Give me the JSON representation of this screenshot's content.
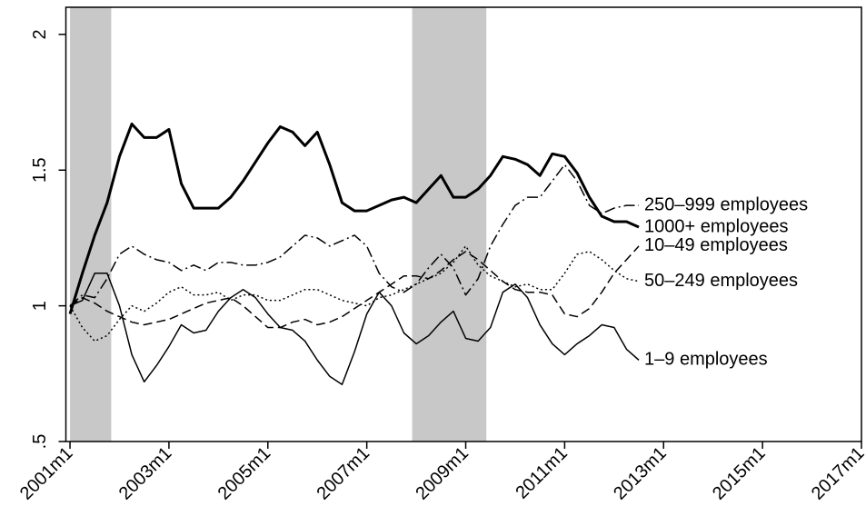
{
  "chart_data": {
    "type": "line",
    "x": [
      "2001m1",
      "2001m4",
      "2001m7",
      "2001m10",
      "2002m1",
      "2002m4",
      "2002m7",
      "2002m10",
      "2003m1",
      "2003m4",
      "2003m7",
      "2003m10",
      "2004m1",
      "2004m4",
      "2004m7",
      "2004m10",
      "2005m1",
      "2005m4",
      "2005m7",
      "2005m10",
      "2006m1",
      "2006m4",
      "2006m7",
      "2006m10",
      "2007m1",
      "2007m4",
      "2007m7",
      "2007m10",
      "2008m1",
      "2008m4",
      "2008m7",
      "2008m10",
      "2009m1",
      "2009m4",
      "2009m7",
      "2009m10",
      "2010m1",
      "2010m4",
      "2010m7",
      "2010m10",
      "2011m1",
      "2011m4",
      "2011m7",
      "2011m10",
      "2012m1",
      "2012m4",
      "2012m7"
    ],
    "series": [
      {
        "name": "1000+ employees",
        "color": "#000000",
        "style": "solid",
        "weight": "bold",
        "values": [
          0.97,
          1.12,
          1.26,
          1.38,
          1.55,
          1.67,
          1.62,
          1.62,
          1.65,
          1.45,
          1.36,
          1.36,
          1.36,
          1.4,
          1.46,
          1.53,
          1.6,
          1.66,
          1.64,
          1.59,
          1.64,
          1.52,
          1.38,
          1.35,
          1.35,
          1.37,
          1.39,
          1.4,
          1.38,
          1.43,
          1.48,
          1.4,
          1.4,
          1.43,
          1.48,
          1.55,
          1.54,
          1.52,
          1.48,
          1.56,
          1.55,
          1.49,
          1.4,
          1.33,
          1.31,
          1.31,
          1.29
        ]
      },
      {
        "name": "250–999 employees",
        "color": "#000000",
        "style": "dash-dot",
        "weight": "normal",
        "values": [
          1.0,
          1.04,
          1.03,
          1.1,
          1.19,
          1.22,
          1.19,
          1.17,
          1.16,
          1.13,
          1.15,
          1.13,
          1.16,
          1.16,
          1.15,
          1.15,
          1.16,
          1.18,
          1.22,
          1.26,
          1.25,
          1.22,
          1.24,
          1.26,
          1.22,
          1.12,
          1.07,
          1.05,
          1.08,
          1.14,
          1.19,
          1.14,
          1.04,
          1.1,
          1.22,
          1.3,
          1.37,
          1.4,
          1.4,
          1.46,
          1.52,
          1.46,
          1.37,
          1.34,
          1.36,
          1.37,
          1.37
        ]
      },
      {
        "name": "10–49 employees",
        "color": "#000000",
        "style": "dash",
        "weight": "normal",
        "values": [
          1.0,
          1.03,
          1.01,
          0.98,
          0.96,
          0.94,
          0.93,
          0.94,
          0.95,
          0.97,
          0.99,
          1.01,
          1.02,
          1.03,
          1.0,
          0.96,
          0.92,
          0.92,
          0.94,
          0.95,
          0.93,
          0.94,
          0.96,
          0.99,
          1.02,
          1.05,
          1.08,
          1.11,
          1.11,
          1.1,
          1.13,
          1.17,
          1.2,
          1.17,
          1.13,
          1.09,
          1.06,
          1.05,
          1.05,
          1.04,
          0.97,
          0.96,
          0.99,
          1.05,
          1.12,
          1.17,
          1.22
        ]
      },
      {
        "name": "50–249 employees",
        "color": "#000000",
        "style": "dot",
        "weight": "normal",
        "values": [
          1.0,
          0.92,
          0.87,
          0.89,
          0.95,
          1.0,
          0.98,
          1.01,
          1.05,
          1.07,
          1.04,
          1.04,
          1.05,
          1.02,
          1.04,
          1.04,
          1.02,
          1.02,
          1.04,
          1.06,
          1.06,
          1.04,
          1.02,
          1.01,
          1.0,
          1.03,
          1.04,
          1.06,
          1.08,
          1.1,
          1.12,
          1.16,
          1.22,
          1.15,
          1.11,
          1.09,
          1.07,
          1.08,
          1.06,
          1.06,
          1.12,
          1.19,
          1.2,
          1.17,
          1.13,
          1.1,
          1.09
        ]
      },
      {
        "name": "1–9 employees",
        "color": "#000000",
        "style": "solid",
        "weight": "normal",
        "values": [
          1.0,
          1.02,
          1.12,
          1.12,
          1.0,
          0.82,
          0.72,
          0.78,
          0.85,
          0.93,
          0.9,
          0.91,
          0.98,
          1.03,
          1.06,
          1.03,
          0.97,
          0.92,
          0.91,
          0.87,
          0.8,
          0.74,
          0.71,
          0.83,
          0.97,
          1.05,
          1.0,
          0.9,
          0.86,
          0.89,
          0.94,
          0.98,
          0.88,
          0.87,
          0.92,
          1.05,
          1.08,
          1.03,
          0.93,
          0.86,
          0.82,
          0.86,
          0.89,
          0.93,
          0.92,
          0.84,
          0.8
        ]
      }
    ],
    "shaded_periods": [
      [
        "2001m1",
        "2001m11"
      ],
      [
        "2007m12",
        "2009m6"
      ]
    ],
    "shade_color": "#c8c8c8",
    "xlim": [
      "2000m12",
      "2017m1"
    ],
    "xticks": [
      "2001m1",
      "2003m1",
      "2005m1",
      "2007m1",
      "2009m1",
      "2011m1",
      "2013m1",
      "2015m1",
      "2017m1"
    ],
    "ylim": [
      0.5,
      2.1
    ],
    "yticks": [
      {
        "value": 0.5,
        "label": ".5"
      },
      1,
      1.5,
      2
    ],
    "grid": false,
    "legend": "line-end"
  }
}
